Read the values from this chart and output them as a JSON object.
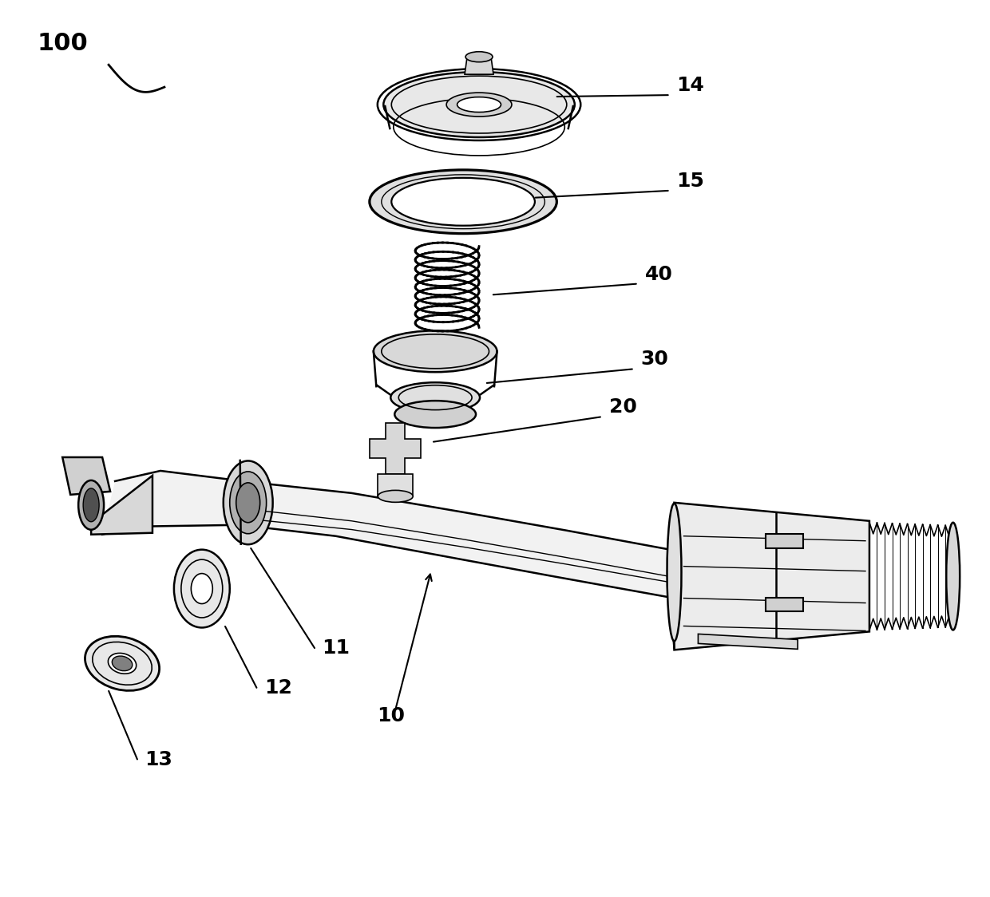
{
  "background_color": "#ffffff",
  "line_color": "#000000",
  "figsize": [
    12.4,
    11.24
  ],
  "dpi": 100,
  "label_fontsize": 18
}
